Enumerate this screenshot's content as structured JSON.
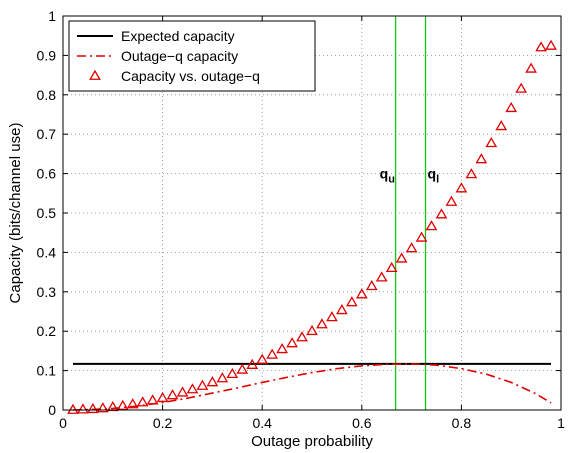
{
  "chart_data": {
    "type": "line",
    "xlabel": "Outage probability",
    "ylabel": "Capacity (bits/channel use)",
    "xlim": [
      0,
      1
    ],
    "ylim": [
      0,
      1
    ],
    "x_ticks": [
      0,
      0.2,
      0.4,
      0.6,
      0.8,
      1
    ],
    "x_tick_labels": [
      "0",
      "0.2",
      "0.4",
      "0.6",
      "0.8",
      "1"
    ],
    "y_ticks": [
      0,
      0.1,
      0.2,
      0.3,
      0.4,
      0.5,
      0.6,
      0.7,
      0.8,
      0.9,
      1
    ],
    "y_tick_labels": [
      "0",
      "0.1",
      "0.2",
      "0.3",
      "0.4",
      "0.5",
      "0.6",
      "0.7",
      "0.8",
      "0.9",
      "1"
    ],
    "grid": true,
    "legend_position": "top-left",
    "series": [
      {
        "name": "Expected capacity",
        "style": "solid",
        "color": "#000000",
        "x": [
          0.02,
          0.98
        ],
        "y": [
          0.117,
          0.117
        ]
      },
      {
        "name": "Outage−q capacity",
        "style": "dash-dot",
        "color": "#e00000",
        "x": [
          0.02,
          0.05,
          0.1,
          0.15,
          0.2,
          0.25,
          0.3,
          0.35,
          0.4,
          0.45,
          0.5,
          0.55,
          0.6,
          0.65,
          0.7,
          0.75,
          0.8,
          0.85,
          0.9,
          0.95,
          0.98
        ],
        "y": [
          0.0,
          0.001,
          0.004,
          0.01,
          0.019,
          0.03,
          0.043,
          0.056,
          0.07,
          0.083,
          0.095,
          0.105,
          0.112,
          0.116,
          0.117,
          0.114,
          0.105,
          0.091,
          0.07,
          0.041,
          0.018
        ]
      },
      {
        "name": "Capacity vs. outage−q",
        "style": "triangle-markers",
        "color": "#e00000",
        "x": [
          0.02,
          0.04,
          0.06,
          0.08,
          0.1,
          0.12,
          0.14,
          0.16,
          0.18,
          0.2,
          0.22,
          0.24,
          0.26,
          0.28,
          0.3,
          0.32,
          0.34,
          0.36,
          0.38,
          0.4,
          0.42,
          0.44,
          0.46,
          0.48,
          0.5,
          0.52,
          0.54,
          0.56,
          0.58,
          0.6,
          0.62,
          0.64,
          0.66,
          0.68,
          0.7,
          0.72,
          0.74,
          0.76,
          0.78,
          0.8,
          0.82,
          0.84,
          0.86,
          0.88,
          0.9,
          0.92,
          0.94,
          0.96,
          0.98
        ],
        "y": [
          0.0,
          0.001,
          0.002,
          0.004,
          0.007,
          0.01,
          0.014,
          0.019,
          0.024,
          0.03,
          0.037,
          0.044,
          0.052,
          0.061,
          0.07,
          0.08,
          0.091,
          0.102,
          0.114,
          0.127,
          0.14,
          0.154,
          0.169,
          0.184,
          0.2,
          0.217,
          0.235,
          0.253,
          0.273,
          0.293,
          0.314,
          0.336,
          0.36,
          0.384,
          0.41,
          0.437,
          0.466,
          0.496,
          0.528,
          0.562,
          0.598,
          0.636,
          0.677,
          0.72,
          0.766,
          0.815,
          0.866,
          0.92,
          0.924
        ]
      }
    ],
    "vlines": [
      {
        "x": 0.668,
        "color": "#00cc00",
        "label": "q",
        "sub": "u"
      },
      {
        "x": 0.728,
        "color": "#00cc00",
        "label": "q",
        "sub": "l"
      }
    ],
    "annotation_y": 0.6
  }
}
